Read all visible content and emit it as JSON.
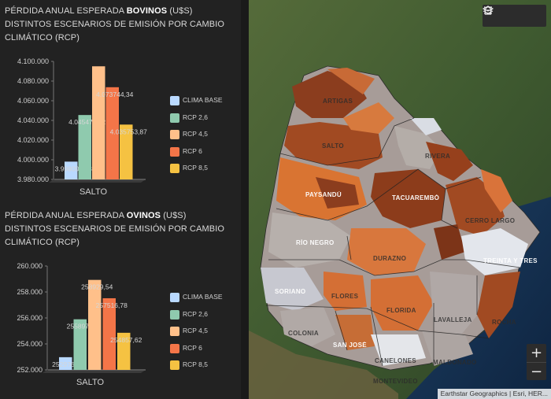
{
  "bovinos": {
    "title_prefix": "PÉRDIDA ANUAL ESPERADA ",
    "title_bold": "BOVINOS",
    "title_suffix": " (U$S)",
    "subtitle_line1": "DISTINTOS ESCENARIOS  DE EMISIÓN POR CAMBIO",
    "subtitle_line2": "CLIMÁTICO (RCP)",
    "category": "SALTO"
  },
  "ovinos": {
    "title_prefix": "PÉRDIDA ANUAL ESPERADA ",
    "title_bold": "OVINOS",
    "title_suffix": " (U$S)",
    "subtitle_line1": "DISTINTOS ESCENARIOS  DE EMISIÓN POR CAMBIO",
    "subtitle_line2": "CLIMÁTICO (RCP)",
    "category": "SALTO"
  },
  "chart_data": [
    {
      "type": "bar",
      "categories": [
        "SALTO"
      ],
      "series": [
        {
          "name": "CLIMA BASE",
          "values": [
            3998092.43
          ],
          "label": "3.998092,43",
          "color": "#b9d9ff"
        },
        {
          "name": "RCP 2,6",
          "values": [
            4045476.02
          ],
          "label": "4.045476,02",
          "color": "#8fcaae"
        },
        {
          "name": "RCP 4,5",
          "values": [
            4095000
          ],
          "label": "",
          "color": "#ffc08a"
        },
        {
          "name": "RCP 6",
          "values": [
            4073744.34
          ],
          "label": "4.073744,34",
          "color": "#f47548"
        },
        {
          "name": "RCP 8,5",
          "values": [
            4035753.87
          ],
          "label": "4.035753,87",
          "color": "#f5c242"
        }
      ],
      "yticks": [
        "4.100.000",
        "4.080.000",
        "4.060.000",
        "4.040.000",
        "4.020.000",
        "4.000.000",
        "3.980.000"
      ],
      "ylim": [
        3980000,
        4100000
      ],
      "legend": "right"
    },
    {
      "type": "bar",
      "categories": [
        "SALTO"
      ],
      "series": [
        {
          "name": "CLIMA BASE",
          "values": [
            252976.66
          ],
          "label": "252976,66",
          "color": "#b9d9ff"
        },
        {
          "name": "RCP 2,6",
          "values": [
            255897.26
          ],
          "label": "255897,26",
          "color": "#8fcaae"
        },
        {
          "name": "RCP 4,5",
          "values": [
            258929.54
          ],
          "label": "258929,54",
          "color": "#ffc08a"
        },
        {
          "name": "RCP 6",
          "values": [
            257516.78
          ],
          "label": "257516,78",
          "color": "#f47548"
        },
        {
          "name": "RCP 8,5",
          "values": [
            254857.62
          ],
          "label": "254857,62",
          "color": "#f5c242"
        }
      ],
      "yticks": [
        "260.000",
        "258.000",
        "256.000",
        "254.000",
        "252.000"
      ],
      "ylim": [
        252000,
        260000
      ],
      "legend": "right"
    }
  ],
  "map": {
    "labels": [
      {
        "text": "ARTIGAS",
        "dark": true
      },
      {
        "text": "SALTO",
        "dark": true
      },
      {
        "text": "RIVERA",
        "dark": true
      },
      {
        "text": "PAYSANDÚ",
        "dark": false
      },
      {
        "text": "TACUAREMBÓ",
        "dark": false
      },
      {
        "text": "CERRO LARGO",
        "dark": true
      },
      {
        "text": "RÍO NEGRO",
        "dark": false
      },
      {
        "text": "DURAZNO",
        "dark": true
      },
      {
        "text": "TREINTA Y TRES",
        "dark": false
      },
      {
        "text": "SORIANO",
        "dark": false
      },
      {
        "text": "FLORES",
        "dark": true
      },
      {
        "text": "FLORIDA",
        "dark": true
      },
      {
        "text": "LAVALLEJA",
        "dark": true
      },
      {
        "text": "ROCHA",
        "dark": true
      },
      {
        "text": "COLONIA",
        "dark": true
      },
      {
        "text": "SAN JOSÉ",
        "dark": false
      },
      {
        "text": "CANELONES",
        "dark": true
      },
      {
        "text": "MALDONADO",
        "dark": true
      },
      {
        "text": "MONTEVIDEO",
        "dark": true
      }
    ],
    "attribution": "Earthstar Geographics | Esri, HER..."
  },
  "toolbar": {
    "icons": [
      "home-icon",
      "legend-list-icon",
      "layers-icon"
    ]
  },
  "zoom": {
    "in": "+",
    "out": "−"
  },
  "colors": {
    "panel": "#222222",
    "dark_brown": "#8b3d1e",
    "orange": "#d9733a",
    "gray": "#a89e9a",
    "light_gray": "#d9dde4"
  }
}
